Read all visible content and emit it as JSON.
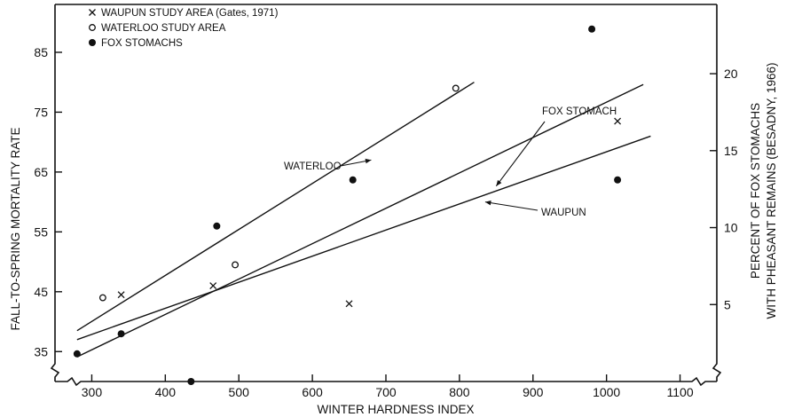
{
  "chart_data": {
    "type": "scatter",
    "title": "",
    "xlabel": "WINTER HARDNESS INDEX",
    "ylabel": "FALL-TO-SPRING MORTALITY RATE",
    "y2label_line1": "PERCENT OF FOX STOMACHS",
    "y2label_line2": "WITH PHEASANT REMAINS (BESADNY, 1966)",
    "xlim": [
      250,
      1150
    ],
    "ylim": [
      30,
      93
    ],
    "y2lim": [
      0,
      24.5
    ],
    "x_ticks": [
      300,
      400,
      500,
      600,
      700,
      800,
      900,
      1000,
      1100
    ],
    "y_ticks": [
      35,
      45,
      55,
      65,
      75,
      85
    ],
    "y2_ticks": [
      5,
      10,
      15,
      20
    ],
    "grid": false,
    "legend_position": "top-left",
    "legend": [
      {
        "marker": "x",
        "label": "WAUPUN STUDY AREA (Gates, 1971)"
      },
      {
        "marker": "open-circle",
        "label": "WATERLOO STUDY AREA"
      },
      {
        "marker": "filled-circle",
        "label": "FOX STOMACHS"
      }
    ],
    "series": [
      {
        "marker": "x",
        "axis": "left",
        "points": [
          [
            340,
            44.5
          ],
          [
            465,
            46
          ],
          [
            650,
            43
          ],
          [
            1015,
            73.5
          ]
        ]
      },
      {
        "marker": "open-circle",
        "axis": "left",
        "points": [
          [
            315,
            44
          ],
          [
            495,
            49.5
          ],
          [
            795,
            79
          ]
        ]
      },
      {
        "marker": "filled-circle",
        "axis": "right",
        "points": [
          [
            280,
            1.8
          ],
          [
            340,
            3.1
          ],
          [
            435,
            0
          ],
          [
            470,
            10.1
          ],
          [
            655,
            13.1
          ],
          [
            980,
            22.9
          ],
          [
            1015,
            13.1
          ]
        ]
      }
    ],
    "trend_lines": [
      {
        "name": "WATERLOO",
        "axis": "left",
        "from": [
          280,
          38.5
        ],
        "to": [
          820,
          80
        ]
      },
      {
        "name": "FOX STOMACH",
        "axis": "right",
        "from": [
          280,
          1.6
        ],
        "to": [
          1050,
          19.3
        ]
      },
      {
        "name": "WAUPUN",
        "axis": "left",
        "from": [
          280,
          37
        ],
        "to": [
          1060,
          71
        ]
      }
    ],
    "annotations": [
      {
        "text": "WATERLOO",
        "points_to": [
          680,
          67
        ]
      },
      {
        "text": "FOX STOMACH",
        "points_to": [
          850,
          58
        ]
      },
      {
        "text": "WAUPUN",
        "points_to": [
          835,
          60
        ]
      }
    ]
  }
}
